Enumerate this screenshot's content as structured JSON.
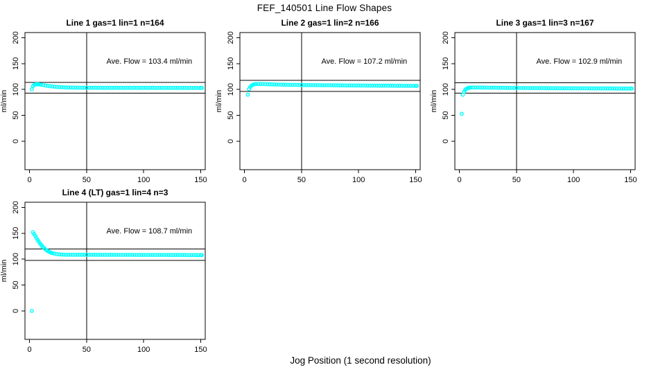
{
  "figure": {
    "title": "FEF_140501  Line Flow Shapes",
    "xlabel": "Jog Position (1 second resolution)",
    "background": "#FFFFFF",
    "point_color": "#00FFFF",
    "axis_color": "#000000"
  },
  "chart_data": [
    {
      "type": "scatter",
      "title": "Line 1 gas=1 lin=1 n=164",
      "ylabel": "ml/min",
      "annotation": "Ave. Flow =  103.4  ml/min",
      "ave_flow_ml_min": 103.4,
      "xticks": [
        0,
        50,
        100,
        150
      ],
      "yticks": [
        0,
        50,
        100,
        150,
        200
      ],
      "xlim": [
        -4,
        154
      ],
      "ylim": [
        -55,
        210
      ],
      "vline_x": 50,
      "hlines": [
        113.7,
        93.1
      ],
      "annotation_pos": [
        105,
        150
      ],
      "points": [
        [
          2,
          100.3
        ],
        [
          3,
          106.5
        ],
        [
          4,
          108.8
        ],
        [
          5,
          109.9
        ],
        [
          6,
          110.2
        ],
        [
          7,
          110.1
        ],
        [
          8,
          109.9
        ],
        [
          9,
          109.6
        ],
        [
          10,
          109.2
        ],
        [
          12,
          108.4
        ],
        [
          14,
          107.7
        ],
        [
          16,
          107.0
        ],
        [
          18,
          106.4
        ],
        [
          20,
          105.9
        ],
        [
          22,
          105.4
        ],
        [
          24,
          105.0
        ],
        [
          26,
          104.7
        ],
        [
          28,
          104.4
        ],
        [
          30,
          104.2
        ],
        [
          32,
          104.0
        ],
        [
          34,
          103.9
        ],
        [
          36,
          103.8
        ],
        [
          38,
          103.7
        ],
        [
          40,
          103.6
        ],
        [
          42,
          103.5
        ],
        [
          44,
          103.5
        ],
        [
          46,
          103.4
        ],
        [
          48,
          103.4
        ],
        [
          50,
          103.3
        ],
        [
          52,
          103.4
        ],
        [
          54,
          103.2
        ],
        [
          56,
          103.5
        ],
        [
          58,
          103.3
        ],
        [
          60,
          103.2
        ],
        [
          62,
          103.4
        ],
        [
          64,
          103.3
        ],
        [
          66,
          103.1
        ],
        [
          68,
          103.4
        ],
        [
          70,
          103.2
        ],
        [
          72,
          103.3
        ],
        [
          74,
          103.1
        ],
        [
          76,
          103.4
        ],
        [
          78,
          103.2
        ],
        [
          80,
          103.3
        ],
        [
          82,
          103.1
        ],
        [
          84,
          103.3
        ],
        [
          86,
          103.2
        ],
        [
          88,
          103.4
        ],
        [
          90,
          103.1
        ],
        [
          92,
          103.3
        ],
        [
          94,
          103.2
        ],
        [
          96,
          103.3
        ],
        [
          98,
          103.1
        ],
        [
          100,
          103.2
        ],
        [
          102,
          103.3
        ],
        [
          104,
          103.1
        ],
        [
          106,
          103.2
        ],
        [
          108,
          103.3
        ],
        [
          110,
          103.1
        ],
        [
          112,
          103.2
        ],
        [
          114,
          103.0
        ],
        [
          116,
          103.2
        ],
        [
          118,
          103.1
        ],
        [
          120,
          103.2
        ],
        [
          122,
          103.0
        ],
        [
          124,
          103.2
        ],
        [
          126,
          103.1
        ],
        [
          128,
          103.2
        ],
        [
          130,
          103.0
        ],
        [
          132,
          103.1
        ],
        [
          134,
          103.2
        ],
        [
          136,
          103.0
        ],
        [
          138,
          103.1
        ],
        [
          140,
          103.0
        ],
        [
          142,
          103.1
        ],
        [
          144,
          103.0
        ],
        [
          146,
          103.1
        ],
        [
          148,
          103.0
        ],
        [
          150,
          103.1
        ],
        [
          151,
          103.0
        ]
      ]
    },
    {
      "type": "scatter",
      "title": "Line 2 gas=1 lin=2 n=166",
      "ylabel": "ml/min",
      "annotation": "Ave. Flow =  107.2  ml/min",
      "ave_flow_ml_min": 107.2,
      "xticks": [
        0,
        50,
        100,
        150
      ],
      "yticks": [
        0,
        50,
        100,
        150,
        200
      ],
      "xlim": [
        -4,
        154
      ],
      "ylim": [
        -55,
        210
      ],
      "vline_x": 50,
      "hlines": [
        117.9,
        96.5
      ],
      "annotation_pos": [
        105,
        150
      ],
      "points": [
        [
          3,
          90.0
        ],
        [
          4,
          100.6
        ],
        [
          5,
          104.8
        ],
        [
          6,
          107.2
        ],
        [
          7,
          108.7
        ],
        [
          8,
          109.6
        ],
        [
          9,
          110.1
        ],
        [
          10,
          110.4
        ],
        [
          12,
          110.6
        ],
        [
          14,
          110.6
        ],
        [
          16,
          110.5
        ],
        [
          18,
          110.3
        ],
        [
          20,
          110.2
        ],
        [
          22,
          110.0
        ],
        [
          24,
          109.9
        ],
        [
          26,
          109.8
        ],
        [
          28,
          109.6
        ],
        [
          30,
          109.5
        ],
        [
          32,
          109.4
        ],
        [
          34,
          109.3
        ],
        [
          36,
          109.2
        ],
        [
          38,
          109.1
        ],
        [
          40,
          109.0
        ],
        [
          42,
          108.9
        ],
        [
          44,
          108.9
        ],
        [
          46,
          108.8
        ],
        [
          48,
          108.7
        ],
        [
          50,
          108.7
        ],
        [
          52,
          108.6
        ],
        [
          54,
          108.6
        ],
        [
          56,
          108.5
        ],
        [
          58,
          108.5
        ],
        [
          60,
          108.4
        ],
        [
          62,
          108.4
        ],
        [
          64,
          108.3
        ],
        [
          66,
          108.3
        ],
        [
          68,
          108.2
        ],
        [
          70,
          108.2
        ],
        [
          72,
          108.2
        ],
        [
          74,
          108.1
        ],
        [
          76,
          108.1
        ],
        [
          78,
          108.0
        ],
        [
          80,
          108.0
        ],
        [
          82,
          108.0
        ],
        [
          84,
          107.9
        ],
        [
          86,
          107.9
        ],
        [
          88,
          107.9
        ],
        [
          90,
          107.8
        ],
        [
          92,
          107.8
        ],
        [
          94,
          107.8
        ],
        [
          96,
          107.7
        ],
        [
          98,
          107.7
        ],
        [
          100,
          107.7
        ],
        [
          102,
          107.6
        ],
        [
          104,
          107.6
        ],
        [
          106,
          107.6
        ],
        [
          108,
          107.5
        ],
        [
          110,
          107.5
        ],
        [
          112,
          107.5
        ],
        [
          114,
          107.5
        ],
        [
          116,
          107.4
        ],
        [
          118,
          107.4
        ],
        [
          120,
          107.4
        ],
        [
          122,
          107.4
        ],
        [
          124,
          107.3
        ],
        [
          126,
          107.3
        ],
        [
          128,
          107.3
        ],
        [
          130,
          107.3
        ],
        [
          132,
          107.2
        ],
        [
          134,
          107.2
        ],
        [
          136,
          107.2
        ],
        [
          138,
          107.2
        ],
        [
          140,
          107.1
        ],
        [
          142,
          107.1
        ],
        [
          144,
          107.1
        ],
        [
          146,
          107.1
        ],
        [
          148,
          107.0
        ],
        [
          150,
          107.0
        ],
        [
          151,
          107.0
        ]
      ]
    },
    {
      "type": "scatter",
      "title": "Line 3 gas=1 lin=3 n=167",
      "ylabel": "ml/min",
      "annotation": "Ave. Flow =  102.9  ml/min",
      "ave_flow_ml_min": 102.9,
      "xticks": [
        0,
        50,
        100,
        150
      ],
      "yticks": [
        0,
        50,
        100,
        150,
        200
      ],
      "xlim": [
        -4,
        154
      ],
      "ylim": [
        -55,
        210
      ],
      "vline_x": 50,
      "hlines": [
        113.2,
        92.6
      ],
      "annotation_pos": [
        105,
        150
      ],
      "points": [
        [
          2,
          53.0
        ],
        [
          3,
          90.0
        ],
        [
          4,
          95.6
        ],
        [
          5,
          99.0
        ],
        [
          6,
          101.2
        ],
        [
          7,
          102.4
        ],
        [
          8,
          103.1
        ],
        [
          9,
          103.5
        ],
        [
          10,
          103.7
        ],
        [
          12,
          103.9
        ],
        [
          14,
          103.9
        ],
        [
          16,
          103.8
        ],
        [
          18,
          103.8
        ],
        [
          20,
          103.7
        ],
        [
          22,
          103.7
        ],
        [
          24,
          103.6
        ],
        [
          26,
          103.6
        ],
        [
          28,
          103.5
        ],
        [
          30,
          103.5
        ],
        [
          32,
          103.4
        ],
        [
          34,
          103.4
        ],
        [
          36,
          103.3
        ],
        [
          38,
          103.3
        ],
        [
          40,
          103.2
        ],
        [
          42,
          103.2
        ],
        [
          44,
          103.1
        ],
        [
          46,
          103.1
        ],
        [
          48,
          103.0
        ],
        [
          50,
          103.0
        ],
        [
          52,
          103.0
        ],
        [
          54,
          102.9
        ],
        [
          56,
          102.9
        ],
        [
          58,
          102.9
        ],
        [
          60,
          102.8
        ],
        [
          62,
          102.8
        ],
        [
          64,
          102.8
        ],
        [
          66,
          102.7
        ],
        [
          68,
          102.7
        ],
        [
          70,
          102.7
        ],
        [
          72,
          102.6
        ],
        [
          74,
          102.6
        ],
        [
          76,
          102.6
        ],
        [
          78,
          102.5
        ],
        [
          80,
          102.5
        ],
        [
          82,
          102.5
        ],
        [
          84,
          102.5
        ],
        [
          86,
          102.4
        ],
        [
          88,
          102.4
        ],
        [
          90,
          102.4
        ],
        [
          92,
          102.4
        ],
        [
          94,
          102.3
        ],
        [
          96,
          102.3
        ],
        [
          98,
          102.3
        ],
        [
          100,
          102.3
        ],
        [
          102,
          102.3
        ],
        [
          104,
          102.2
        ],
        [
          106,
          102.2
        ],
        [
          108,
          102.2
        ],
        [
          110,
          102.2
        ],
        [
          112,
          102.2
        ],
        [
          114,
          102.1
        ],
        [
          116,
          102.1
        ],
        [
          118,
          102.1
        ],
        [
          120,
          102.1
        ],
        [
          122,
          102.1
        ],
        [
          124,
          102.0
        ],
        [
          126,
          102.0
        ],
        [
          128,
          102.0
        ],
        [
          130,
          102.0
        ],
        [
          132,
          102.0
        ],
        [
          134,
          102.0
        ],
        [
          136,
          101.9
        ],
        [
          138,
          101.9
        ],
        [
          140,
          101.9
        ],
        [
          142,
          101.9
        ],
        [
          144,
          101.9
        ],
        [
          146,
          101.9
        ],
        [
          148,
          101.8
        ],
        [
          150,
          101.8
        ],
        [
          151,
          101.8
        ]
      ]
    },
    {
      "type": "scatter",
      "title": "Line 4 (LT) gas=1 lin=4 n=3",
      "ylabel": "ml/min",
      "annotation": "Ave. Flow =  108.7  ml/min",
      "ave_flow_ml_min": 108.7,
      "xticks": [
        0,
        50,
        100,
        150
      ],
      "yticks": [
        0,
        50,
        100,
        150,
        200
      ],
      "xlim": [
        -4,
        154
      ],
      "ylim": [
        -55,
        210
      ],
      "vline_x": 50,
      "hlines": [
        119.6,
        97.8
      ],
      "annotation_pos": [
        105,
        150
      ],
      "points": [
        [
          2,
          0.0
        ],
        [
          3,
          152.0
        ],
        [
          4,
          148.6
        ],
        [
          5,
          144.9
        ],
        [
          6,
          141.2
        ],
        [
          7,
          137.6
        ],
        [
          8,
          134.2
        ],
        [
          9,
          131.0
        ],
        [
          10,
          128.1
        ],
        [
          11,
          125.4
        ],
        [
          12,
          123.0
        ],
        [
          13,
          120.9
        ],
        [
          14,
          119.0
        ],
        [
          15,
          117.3
        ],
        [
          16,
          115.8
        ],
        [
          17,
          114.5
        ],
        [
          18,
          113.4
        ],
        [
          19,
          112.5
        ],
        [
          20,
          111.7
        ],
        [
          22,
          110.5
        ],
        [
          24,
          109.7
        ],
        [
          26,
          109.2
        ],
        [
          28,
          108.9
        ],
        [
          30,
          108.7
        ],
        [
          32,
          108.6
        ],
        [
          34,
          108.5
        ],
        [
          36,
          108.5
        ],
        [
          38,
          108.5
        ],
        [
          40,
          108.5
        ],
        [
          42,
          108.5
        ],
        [
          44,
          108.5
        ],
        [
          46,
          108.5
        ],
        [
          48,
          108.5
        ],
        [
          50,
          108.5
        ],
        [
          52,
          108.5
        ],
        [
          54,
          108.5
        ],
        [
          56,
          108.5
        ],
        [
          58,
          108.4
        ],
        [
          60,
          108.4
        ],
        [
          62,
          108.4
        ],
        [
          64,
          108.4
        ],
        [
          66,
          108.4
        ],
        [
          68,
          108.4
        ],
        [
          70,
          108.4
        ],
        [
          72,
          108.4
        ],
        [
          74,
          108.4
        ],
        [
          76,
          108.3
        ],
        [
          78,
          108.3
        ],
        [
          80,
          108.3
        ],
        [
          82,
          108.3
        ],
        [
          84,
          108.3
        ],
        [
          86,
          108.3
        ],
        [
          88,
          108.3
        ],
        [
          90,
          108.3
        ],
        [
          92,
          108.2
        ],
        [
          94,
          108.2
        ],
        [
          96,
          108.2
        ],
        [
          98,
          108.2
        ],
        [
          100,
          108.2
        ],
        [
          102,
          108.2
        ],
        [
          104,
          108.2
        ],
        [
          106,
          108.1
        ],
        [
          108,
          108.1
        ],
        [
          110,
          108.1
        ],
        [
          112,
          108.1
        ],
        [
          114,
          108.1
        ],
        [
          116,
          108.1
        ],
        [
          118,
          108.1
        ],
        [
          120,
          108.1
        ],
        [
          122,
          108.0
        ],
        [
          124,
          108.0
        ],
        [
          126,
          108.0
        ],
        [
          128,
          108.0
        ],
        [
          130,
          108.0
        ],
        [
          132,
          108.0
        ],
        [
          134,
          108.0
        ],
        [
          136,
          108.0
        ],
        [
          138,
          107.9
        ],
        [
          140,
          107.9
        ],
        [
          142,
          107.9
        ],
        [
          144,
          107.9
        ],
        [
          146,
          107.9
        ],
        [
          148,
          107.9
        ],
        [
          150,
          107.9
        ],
        [
          151,
          107.9
        ]
      ]
    }
  ]
}
